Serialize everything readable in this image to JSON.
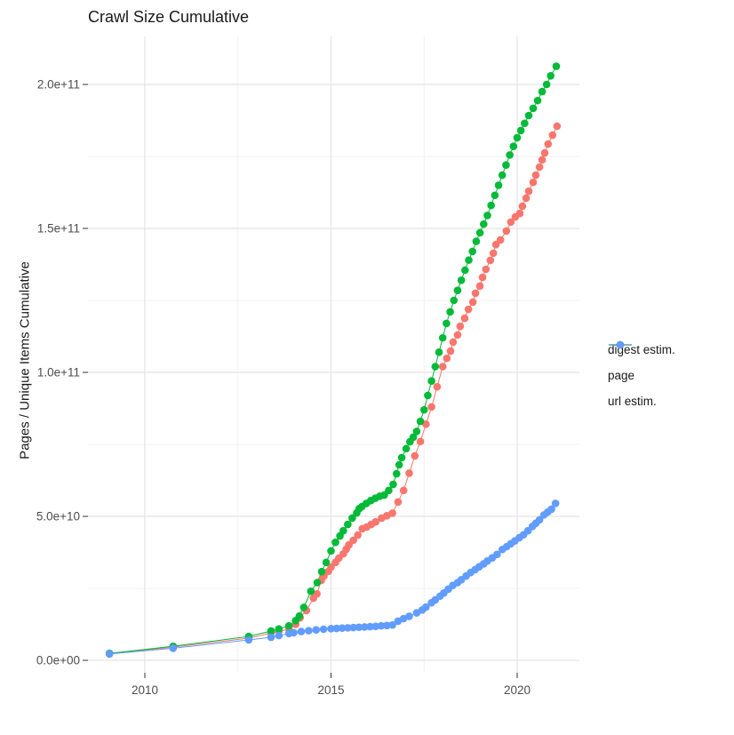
{
  "chart_data": {
    "type": "scatter-line",
    "title": "Crawl Size Cumulative",
    "xlabel": "",
    "ylabel": "Pages / Unique Items Cumulative",
    "values_in": "billions (1e9) of pages / unique items",
    "xlim": [
      2008.5,
      2021.7
    ],
    "ylim_billions": [
      -4.3,
      216.5
    ],
    "grid": "major and minor, light gray on white",
    "legend_position": "right",
    "x_ticks": [
      {
        "label": "2010",
        "value": 2010
      },
      {
        "label": "2015",
        "value": 2015
      },
      {
        "label": "2020",
        "value": 2020
      }
    ],
    "x_minor": [
      2012.5,
      2017.5
    ],
    "y_ticks": [
      {
        "label": "0.0e+00",
        "value": 0
      },
      {
        "label": "5.0e+10",
        "value": 50
      },
      {
        "label": "1.0e+11",
        "value": 100
      },
      {
        "label": "1.5e+11",
        "value": 150
      },
      {
        "label": "2.0e+11",
        "value": 200
      }
    ],
    "y_minor": [
      25,
      75,
      125,
      175
    ],
    "colors": {
      "grid_major": "#e4e4e4",
      "grid_minor": "#f1f1f1",
      "tick_label": "#4d4d4d",
      "tick_mark": "#333333",
      "text": "#1a1a1a"
    },
    "series": [
      {
        "name": "digest estim.",
        "color": "#F8766D",
        "points": [
          [
            2009.05,
            2.3
          ],
          [
            2010.76,
            4.6
          ],
          [
            2012.79,
            7.7
          ],
          [
            2013.39,
            9.5
          ],
          [
            2013.6,
            10.1
          ],
          [
            2013.87,
            10.8
          ],
          [
            2014.05,
            12.5
          ],
          [
            2014.17,
            14.8
          ],
          [
            2014.34,
            17.3
          ],
          [
            2014.53,
            21.6
          ],
          [
            2014.62,
            23.1
          ],
          [
            2014.74,
            27.8
          ],
          [
            2014.81,
            29.3
          ],
          [
            2014.93,
            30.9
          ],
          [
            2015.0,
            32.4
          ],
          [
            2015.12,
            34.0
          ],
          [
            2015.21,
            35.5
          ],
          [
            2015.33,
            37.0
          ],
          [
            2015.41,
            38.6
          ],
          [
            2015.48,
            40.1
          ],
          [
            2015.6,
            41.7
          ],
          [
            2015.72,
            43.5
          ],
          [
            2015.84,
            45.7
          ],
          [
            2015.96,
            46.3
          ],
          [
            2016.08,
            47.2
          ],
          [
            2016.2,
            48.1
          ],
          [
            2016.36,
            49.4
          ],
          [
            2016.5,
            50.2
          ],
          [
            2016.65,
            51.1
          ],
          [
            2016.8,
            55.0
          ],
          [
            2016.95,
            59.0
          ],
          [
            2017.1,
            65.0
          ],
          [
            2017.25,
            71.0
          ],
          [
            2017.4,
            76.0
          ],
          [
            2017.55,
            82.0
          ],
          [
            2017.7,
            88.0
          ],
          [
            2017.85,
            95.0
          ],
          [
            2018.0,
            102.0
          ],
          [
            2018.11,
            104.9
          ],
          [
            2018.21,
            107.4
          ],
          [
            2018.28,
            110.5
          ],
          [
            2018.4,
            113.0
          ],
          [
            2018.47,
            116.0
          ],
          [
            2018.59,
            118.8
          ],
          [
            2018.69,
            121.9
          ],
          [
            2018.81,
            124.4
          ],
          [
            2018.88,
            127.5
          ],
          [
            2019.0,
            130.0
          ],
          [
            2019.07,
            133.0
          ],
          [
            2019.16,
            135.8
          ],
          [
            2019.28,
            138.9
          ],
          [
            2019.36,
            141.4
          ],
          [
            2019.43,
            144.4
          ],
          [
            2019.55,
            146.0
          ],
          [
            2019.71,
            149.1
          ],
          [
            2019.83,
            152.2
          ],
          [
            2019.95,
            154.0
          ],
          [
            2020.07,
            155.2
          ],
          [
            2020.14,
            157.7
          ],
          [
            2020.24,
            160.5
          ],
          [
            2020.31,
            162.9
          ],
          [
            2020.43,
            166.0
          ],
          [
            2020.5,
            168.5
          ],
          [
            2020.6,
            171.3
          ],
          [
            2020.67,
            173.8
          ],
          [
            2020.74,
            176.2
          ],
          [
            2020.83,
            179.3
          ],
          [
            2020.95,
            182.4
          ],
          [
            2021.07,
            185.5
          ]
        ]
      },
      {
        "name": "page",
        "color": "#00BA38",
        "points": [
          [
            2009.05,
            2.4
          ],
          [
            2010.76,
            4.9
          ],
          [
            2012.79,
            8.3
          ],
          [
            2013.39,
            10.2
          ],
          [
            2013.6,
            10.9
          ],
          [
            2013.87,
            12.0
          ],
          [
            2014.05,
            13.8
          ],
          [
            2014.15,
            15.4
          ],
          [
            2014.27,
            18.4
          ],
          [
            2014.46,
            24.0
          ],
          [
            2014.63,
            27.0
          ],
          [
            2014.75,
            30.8
          ],
          [
            2014.87,
            34.0
          ],
          [
            2015.0,
            38.0
          ],
          [
            2015.12,
            41.0
          ],
          [
            2015.24,
            43.2
          ],
          [
            2015.33,
            45.0
          ],
          [
            2015.45,
            47.2
          ],
          [
            2015.57,
            49.4
          ],
          [
            2015.69,
            51.2
          ],
          [
            2015.76,
            52.7
          ],
          [
            2015.83,
            53.4
          ],
          [
            2015.95,
            54.5
          ],
          [
            2016.07,
            55.5
          ],
          [
            2016.19,
            56.3
          ],
          [
            2016.31,
            57.0
          ],
          [
            2016.43,
            57.4
          ],
          [
            2016.55,
            59.0
          ],
          [
            2016.67,
            61.1
          ],
          [
            2016.76,
            64.8
          ],
          [
            2016.83,
            67.9
          ],
          [
            2016.9,
            70.4
          ],
          [
            2017.02,
            73.5
          ],
          [
            2017.12,
            75.9
          ],
          [
            2017.21,
            77.5
          ],
          [
            2017.3,
            79.5
          ],
          [
            2017.4,
            83.0
          ],
          [
            2017.5,
            87.0
          ],
          [
            2017.6,
            92.0
          ],
          [
            2017.7,
            97.0
          ],
          [
            2017.8,
            102.0
          ],
          [
            2017.9,
            107.0
          ],
          [
            2018.0,
            112.0
          ],
          [
            2018.1,
            117.0
          ],
          [
            2018.2,
            121.0
          ],
          [
            2018.3,
            125.0
          ],
          [
            2018.4,
            128.5
          ],
          [
            2018.5,
            132.0
          ],
          [
            2018.6,
            135.5
          ],
          [
            2018.7,
            139.0
          ],
          [
            2018.8,
            142.0
          ],
          [
            2018.9,
            145.5
          ],
          [
            2019.0,
            148.5
          ],
          [
            2019.1,
            151.5
          ],
          [
            2019.2,
            154.5
          ],
          [
            2019.3,
            158.0
          ],
          [
            2019.4,
            161.5
          ],
          [
            2019.5,
            165.0
          ],
          [
            2019.6,
            168.5
          ],
          [
            2019.7,
            172.0
          ],
          [
            2019.8,
            175.5
          ],
          [
            2019.9,
            178.5
          ],
          [
            2020.0,
            181.5
          ],
          [
            2020.1,
            184.0
          ],
          [
            2020.2,
            186.5
          ],
          [
            2020.31,
            189.2
          ],
          [
            2020.43,
            191.7
          ],
          [
            2020.55,
            194.4
          ],
          [
            2020.67,
            197.5
          ],
          [
            2020.79,
            200.0
          ],
          [
            2020.9,
            203.0
          ],
          [
            2021.05,
            206.3
          ]
        ]
      },
      {
        "name": "url estim.",
        "color": "#619CFF",
        "points": [
          [
            2009.05,
            2.2
          ],
          [
            2010.76,
            4.2
          ],
          [
            2012.79,
            7.1
          ],
          [
            2013.39,
            8.0
          ],
          [
            2013.6,
            8.6
          ],
          [
            2013.87,
            9.3
          ],
          [
            2014.0,
            9.6
          ],
          [
            2014.2,
            10.0
          ],
          [
            2014.4,
            10.3
          ],
          [
            2014.6,
            10.6
          ],
          [
            2014.8,
            10.8
          ],
          [
            2015.0,
            11.0
          ],
          [
            2015.15,
            11.1
          ],
          [
            2015.3,
            11.2
          ],
          [
            2015.45,
            11.3
          ],
          [
            2015.6,
            11.4
          ],
          [
            2015.75,
            11.5
          ],
          [
            2015.9,
            11.6
          ],
          [
            2016.05,
            11.7
          ],
          [
            2016.2,
            11.8
          ],
          [
            2016.35,
            12.0
          ],
          [
            2016.5,
            12.1
          ],
          [
            2016.65,
            12.3
          ],
          [
            2016.8,
            13.6
          ],
          [
            2016.95,
            14.5
          ],
          [
            2017.1,
            15.3
          ],
          [
            2017.3,
            16.5
          ],
          [
            2017.45,
            17.5
          ],
          [
            2017.55,
            18.5
          ],
          [
            2017.7,
            20.0
          ],
          [
            2017.8,
            21.0
          ],
          [
            2017.93,
            22.3
          ],
          [
            2018.03,
            23.4
          ],
          [
            2018.15,
            24.7
          ],
          [
            2018.27,
            26.0
          ],
          [
            2018.4,
            27.0
          ],
          [
            2018.5,
            28.0
          ],
          [
            2018.63,
            29.3
          ],
          [
            2018.75,
            30.5
          ],
          [
            2018.87,
            31.5
          ],
          [
            2018.98,
            32.5
          ],
          [
            2019.1,
            33.5
          ],
          [
            2019.2,
            34.5
          ],
          [
            2019.33,
            35.6
          ],
          [
            2019.46,
            36.8
          ],
          [
            2019.6,
            38.5
          ],
          [
            2019.72,
            39.5
          ],
          [
            2019.83,
            40.5
          ],
          [
            2019.94,
            41.5
          ],
          [
            2020.06,
            42.6
          ],
          [
            2020.17,
            43.6
          ],
          [
            2020.29,
            45.0
          ],
          [
            2020.41,
            46.5
          ],
          [
            2020.5,
            47.6
          ],
          [
            2020.6,
            48.8
          ],
          [
            2020.72,
            50.5
          ],
          [
            2020.82,
            51.5
          ],
          [
            2020.92,
            52.5
          ],
          [
            2021.03,
            54.5
          ]
        ]
      }
    ]
  }
}
